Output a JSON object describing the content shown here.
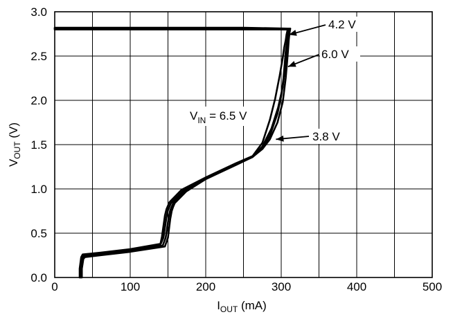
{
  "chart_data": {
    "type": "line",
    "xlabel": {
      "main": "I",
      "sub": "OUT",
      "rest": " (mA)"
    },
    "ylabel": {
      "main": "V",
      "sub": "OUT",
      "rest": " (V)"
    },
    "xlim": [
      0,
      500
    ],
    "ylim": [
      0.0,
      3.0
    ],
    "xticks": [
      0,
      100,
      200,
      300,
      400,
      500
    ],
    "yticks": [
      "0.0",
      "0.5",
      "1.0",
      "1.5",
      "2.0",
      "2.5",
      "3.0"
    ],
    "grid": true,
    "series": [
      {
        "name": "4.2 V",
        "x": [
          34,
          34,
          36,
          38,
          60,
          100,
          140,
          144,
          148,
          150,
          152,
          154,
          170,
          200,
          240,
          262,
          275,
          285,
          295,
          300,
          303,
          305,
          306,
          308,
          309,
          310,
          250,
          150,
          50,
          0
        ],
        "y": [
          0.0,
          0.1,
          0.22,
          0.25,
          0.27,
          0.31,
          0.37,
          0.45,
          0.68,
          0.76,
          0.8,
          0.84,
          0.98,
          1.12,
          1.28,
          1.36,
          1.46,
          1.6,
          1.85,
          2.05,
          2.25,
          2.45,
          2.55,
          2.68,
          2.76,
          2.8,
          2.81,
          2.81,
          2.81,
          2.81
        ]
      },
      {
        "name": "6.0 V",
        "x": [
          35,
          35,
          37,
          39,
          60,
          100,
          143,
          147,
          151,
          153,
          155,
          157,
          172,
          200,
          240,
          262,
          275,
          285,
          295,
          302,
          306,
          308,
          309,
          310,
          311,
          312,
          250,
          150,
          50,
          0
        ],
        "y": [
          0.0,
          0.1,
          0.22,
          0.24,
          0.26,
          0.3,
          0.36,
          0.45,
          0.68,
          0.76,
          0.8,
          0.84,
          0.98,
          1.12,
          1.28,
          1.36,
          1.45,
          1.56,
          1.75,
          1.98,
          2.25,
          2.45,
          2.56,
          2.68,
          2.76,
          2.81,
          2.81,
          2.81,
          2.81,
          2.81
        ]
      },
      {
        "name": "V_IN = 6.5 V",
        "x": [
          36,
          36,
          38,
          40,
          60,
          100,
          146,
          150,
          153,
          155,
          157,
          159,
          174,
          200,
          240,
          262,
          275,
          287,
          296,
          302,
          305,
          307,
          308,
          309,
          310,
          311,
          250,
          150,
          50,
          0
        ],
        "y": [
          0.0,
          0.1,
          0.21,
          0.23,
          0.25,
          0.29,
          0.35,
          0.45,
          0.66,
          0.75,
          0.8,
          0.84,
          0.97,
          1.11,
          1.27,
          1.36,
          1.48,
          1.68,
          1.92,
          2.15,
          2.35,
          2.5,
          2.6,
          2.7,
          2.77,
          2.8,
          2.8,
          2.8,
          2.8,
          2.8
        ]
      },
      {
        "name": "3.8 V",
        "x": [
          33,
          33,
          35,
          37,
          60,
          100,
          140,
          142,
          146,
          148,
          150,
          152,
          168,
          200,
          240,
          262,
          275,
          285,
          292,
          298,
          302,
          304,
          306,
          307,
          308,
          309,
          250,
          150,
          50,
          0
        ],
        "y": [
          0.0,
          0.1,
          0.23,
          0.26,
          0.28,
          0.32,
          0.38,
          0.46,
          0.7,
          0.77,
          0.81,
          0.85,
          0.99,
          1.13,
          1.29,
          1.37,
          1.52,
          1.78,
          2.02,
          2.28,
          2.48,
          2.6,
          2.68,
          2.74,
          2.78,
          2.81,
          2.82,
          2.82,
          2.82,
          2.82
        ]
      }
    ],
    "annotations": [
      {
        "text": "4.2 V"
      },
      {
        "text": "6.0 V"
      },
      {
        "main": "V",
        "sub": "IN",
        "rest": " = 6.5 V"
      },
      {
        "text": "3.8 V"
      }
    ]
  }
}
